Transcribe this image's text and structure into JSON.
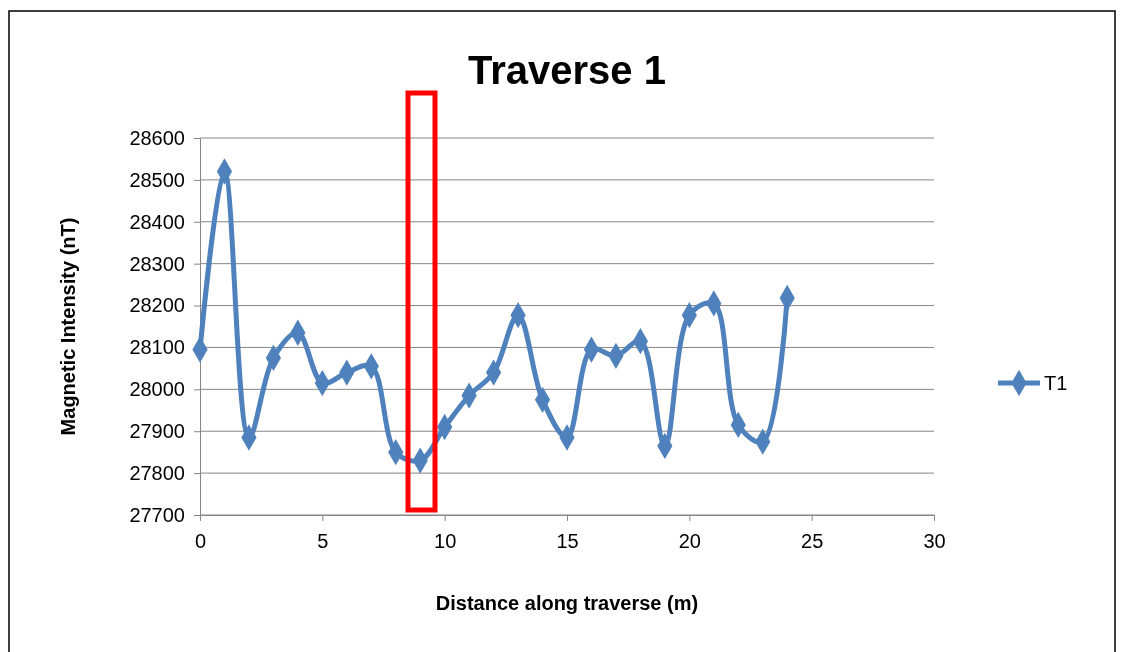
{
  "chart_data": {
    "type": "line",
    "title": "Traverse 1",
    "xlabel": "Distance along traverse (m)",
    "ylabel": "Magnetic Intensity (nT)",
    "x": [
      0,
      1,
      2,
      3,
      4,
      5,
      6,
      7,
      8,
      9,
      10,
      11,
      12,
      13,
      14,
      15,
      16,
      17,
      18,
      19,
      20,
      21,
      22,
      23,
      24
    ],
    "series": [
      {
        "name": "T1",
        "color": "#4f81bd",
        "values": [
          28095,
          28520,
          27885,
          28075,
          28135,
          28015,
          28040,
          28055,
          27850,
          27830,
          27910,
          27985,
          28040,
          28177,
          27975,
          27885,
          28095,
          28080,
          28115,
          27865,
          28177,
          28205,
          27915,
          27875,
          28218
        ]
      }
    ],
    "xlim": [
      0,
      30
    ],
    "xticks": [
      0,
      5,
      10,
      15,
      20,
      25,
      30
    ],
    "ylim": [
      27700,
      28600
    ],
    "yticks": [
      27700,
      27800,
      27900,
      28000,
      28100,
      28200,
      28300,
      28400,
      28500,
      28600
    ],
    "grid": "y",
    "legend": "right",
    "marker": "diamond",
    "line_style": "solid"
  }
}
